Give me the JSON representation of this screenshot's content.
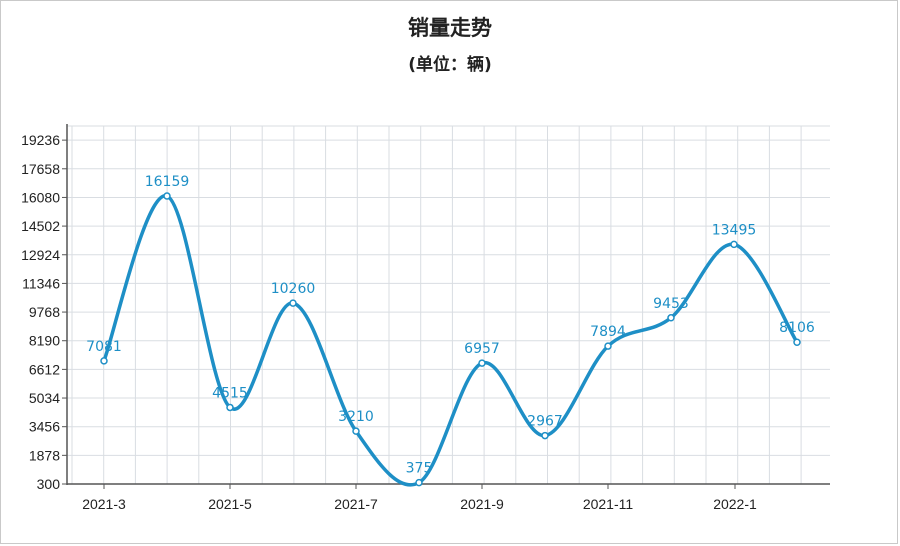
{
  "chart_data": {
    "type": "line",
    "title": "销量走势",
    "subtitle": "(单位：辆)",
    "xlabel": "",
    "ylabel": "",
    "x_ticks": [
      "2021-3",
      "2021-5",
      "2021-7",
      "2021-9",
      "2021-11",
      "2022-1"
    ],
    "y_ticks": [
      300,
      1878,
      3456,
      5034,
      6612,
      8190,
      9768,
      11346,
      12924,
      14502,
      16080,
      17658,
      19236
    ],
    "ylim": [
      300,
      20014
    ],
    "xlim": [
      0,
      11
    ],
    "grid": true,
    "smooth": true,
    "series": [
      {
        "color": "#1e8fc6",
        "points": [
          {
            "x": 0.0,
            "y": 7081
          },
          {
            "x": 1.0,
            "y": 16159
          },
          {
            "x": 2.0,
            "y": 4515
          },
          {
            "x": 3.0,
            "y": 10260
          },
          {
            "x": 4.0,
            "y": 3210
          },
          {
            "x": 5.0,
            "y": 375
          },
          {
            "x": 6.0,
            "y": 6957
          },
          {
            "x": 7.0,
            "y": 2967
          },
          {
            "x": 8.0,
            "y": 7894
          },
          {
            "x": 9.0,
            "y": 9453
          },
          {
            "x": 10.0,
            "y": 13495
          },
          {
            "x": 11.0,
            "y": 8106
          }
        ]
      }
    ]
  }
}
